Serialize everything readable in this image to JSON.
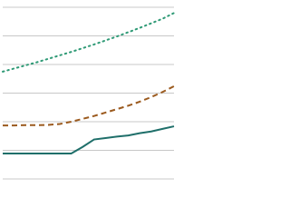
{
  "chart_data": {
    "type": "line",
    "x": [
      0,
      1,
      2,
      3,
      4,
      5,
      6,
      7,
      8,
      9,
      10,
      11,
      12,
      13,
      14,
      15
    ],
    "xlim": [
      0,
      15
    ],
    "ylim": [
      0,
      6
    ],
    "yticks": [
      0,
      1,
      2,
      3,
      4,
      5,
      6
    ],
    "grid": true,
    "series": [
      {
        "color": "#2f9a76",
        "style": "dotted",
        "values": [
          3.75,
          3.86,
          3.97,
          4.08,
          4.2,
          4.32,
          4.44,
          4.57,
          4.7,
          4.84,
          4.98,
          5.13,
          5.28,
          5.44,
          5.6,
          5.8
        ]
      },
      {
        "color": "#9b5a1e",
        "style": "dashed",
        "values": [
          1.87,
          1.87,
          1.88,
          1.88,
          1.89,
          1.92,
          2.0,
          2.1,
          2.2,
          2.32,
          2.44,
          2.56,
          2.7,
          2.86,
          3.04,
          3.24
        ]
      },
      {
        "color": "#1f6f6a",
        "style": "solid",
        "values": [
          0.89,
          0.89,
          0.89,
          0.89,
          0.89,
          0.89,
          0.89,
          1.12,
          1.38,
          1.43,
          1.48,
          1.52,
          1.6,
          1.66,
          1.75,
          1.84
        ]
      }
    ]
  }
}
